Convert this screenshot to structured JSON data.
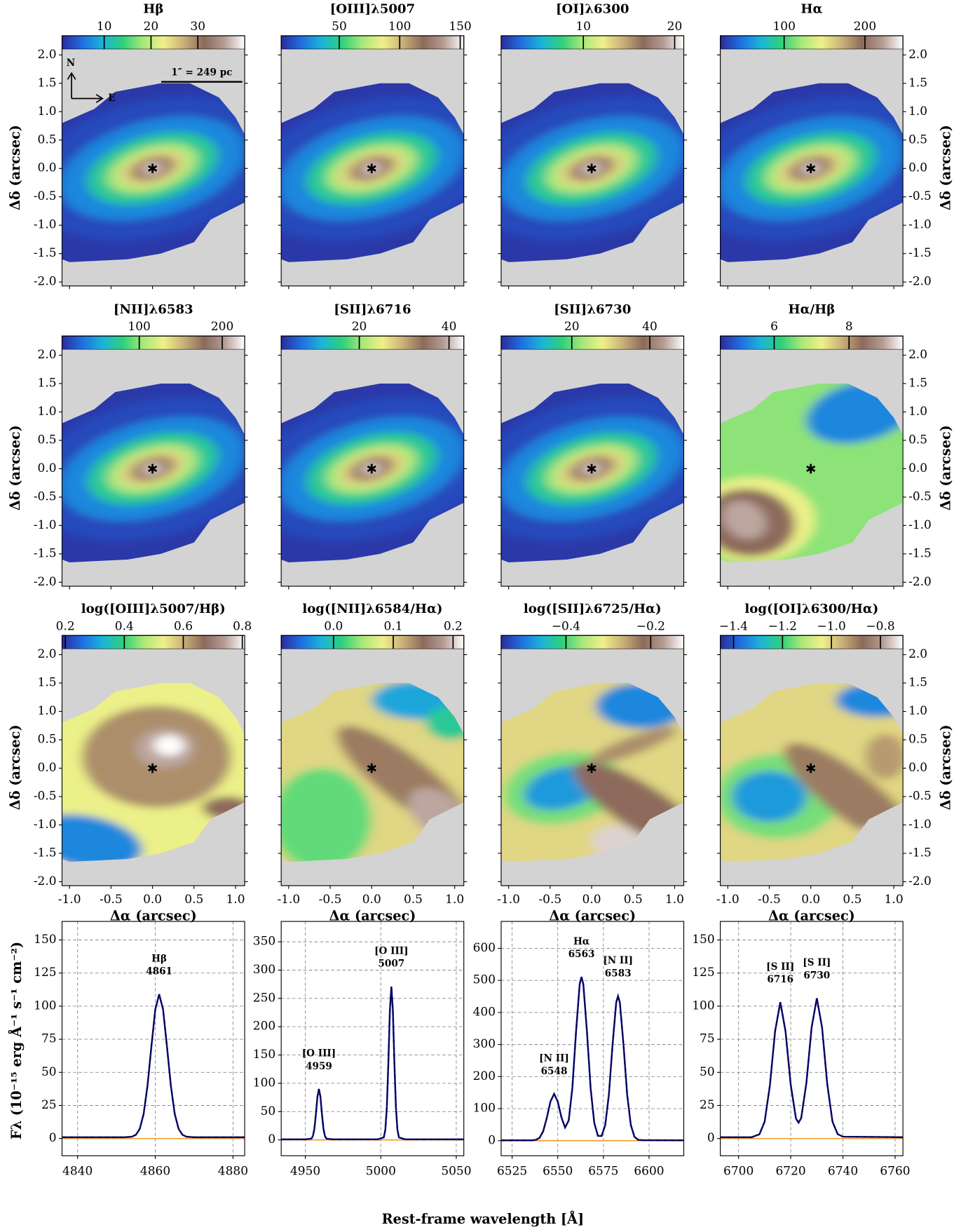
{
  "colormap": [
    "#2b2b9c",
    "#1f6fe0",
    "#1cb4d8",
    "#2fd07a",
    "#a8e878",
    "#f0f08a",
    "#c9b078",
    "#8c6a5a",
    "#b59c94",
    "#ffffff"
  ],
  "map_axes": {
    "xlim": [
      -1.09,
      1.11
    ],
    "ylim": [
      -2.07,
      2.1
    ],
    "xticks": [
      {
        "value": -1,
        "label": "-1.0"
      },
      -0.5,
      {
        "value": 0,
        "label": "0.0"
      },
      0.5,
      {
        "value": 1,
        "label": "1.0"
      }
    ],
    "yticks": [
      {
        "value": -2,
        "label": "-2.0"
      },
      -1.5,
      {
        "value": -1,
        "label": "-1.0"
      },
      -0.5,
      {
        "value": 0,
        "label": "0.0"
      },
      0.5,
      {
        "value": 1,
        "label": "1.0"
      },
      1.5,
      {
        "value": 2,
        "label": "2.0"
      }
    ],
    "xlabel": "Δα (arcsec)",
    "ylabel": "Δδ (arcsec)"
  },
  "annotations": {
    "compass_n": "N",
    "compass_e": "E",
    "scale_bar": "1″ = 249 pc"
  },
  "maps": [
    {
      "title": "Hβ",
      "clim": [
        1,
        40
      ],
      "cticks": [
        10,
        20,
        30
      ]
    },
    {
      "title": "[OIII]λ5007",
      "clim": [
        2,
        153
      ],
      "cticks": [
        50,
        100,
        150
      ]
    },
    {
      "title": "[OI]λ6300",
      "clim": [
        1,
        21
      ],
      "cticks": [
        10,
        20
      ]
    },
    {
      "title": "Hα",
      "clim": [
        21,
        247
      ],
      "cticks": [
        100,
        200
      ]
    },
    {
      "title": "[NII]λ6583",
      "clim": [
        7,
        227
      ],
      "cticks": [
        100,
        200
      ]
    },
    {
      "title": "[SII]λ6716",
      "clim": [
        2.6,
        43.3
      ],
      "cticks": [
        20,
        40
      ]
    },
    {
      "title": "[SII]λ6730",
      "clim": [
        1.9,
        48.7
      ],
      "cticks": [
        20,
        40
      ]
    },
    {
      "title": "Hα/Hβ",
      "clim": [
        4.56,
        9.44
      ],
      "cticks": [
        6,
        8
      ]
    },
    {
      "title": "log([OIII]λ5007/Hβ)",
      "clim": [
        0.189,
        0.808
      ],
      "cticks": [
        0.2,
        0.4,
        0.6,
        0.8
      ]
    },
    {
      "title": "log([NII]λ6584/Hα)",
      "clim": [
        -0.0875,
        0.218
      ],
      "cticks": [
        {
          "value": 0,
          "label": "0.0"
        },
        0.1,
        0.2
      ]
    },
    {
      "title": "log([SII]λ6725/Hα)",
      "clim": [
        -0.553,
        -0.122
      ],
      "cticks": [
        {
          "value": -0.4,
          "label": "−0.4"
        },
        {
          "value": -0.2,
          "label": "−0.2"
        }
      ]
    },
    {
      "title": "log([OI]λ6300/Hα)",
      "clim": [
        -1.454,
        -0.708
      ],
      "cticks": [
        {
          "value": -1.4,
          "label": "−1.4"
        },
        {
          "value": -1.2,
          "label": "−1.2"
        },
        {
          "value": -1.0,
          "label": "−1.0"
        },
        {
          "value": -0.8,
          "label": "−0.8"
        }
      ]
    }
  ],
  "spectra_labels": {
    "ylabel": "Fλ (10⁻¹⁵ erg Å⁻¹ s⁻¹ cm⁻²)",
    "xlabel": "Rest-frame wavelength [Å]"
  },
  "chart_data": [
    {
      "type": "line",
      "grid": true,
      "xlim": [
        4836,
        4883
      ],
      "ylim": [
        -13,
        164
      ],
      "xticks": [
        4840,
        4860,
        4880
      ],
      "yticks": [
        0,
        25,
        50,
        75,
        100,
        125,
        150
      ],
      "x": [
        4836,
        4845,
        4852,
        4854,
        4855,
        4856,
        4857,
        4858,
        4859,
        4860,
        4861,
        4862,
        4863,
        4864,
        4865,
        4866,
        4867,
        4868,
        4870,
        4876,
        4883
      ],
      "series": [
        {
          "color": "#0a0a8c",
          "values": [
            1,
            1,
            1,
            1.4,
            2.8,
            7.3,
            18.6,
            40,
            69.6,
            97.5,
            109,
            97.5,
            69.6,
            40,
            18.6,
            7.3,
            2.8,
            1.4,
            1,
            1,
            1
          ]
        },
        {
          "color": "#f0a030",
          "values": [
            0,
            0,
            0,
            0,
            0,
            0,
            0,
            0,
            0,
            0,
            0,
            0,
            0,
            0,
            0,
            0,
            0,
            0,
            0,
            0,
            0
          ]
        }
      ],
      "lines": [
        {
          "name": "Hβ",
          "wavelength": 4861
        }
      ]
    },
    {
      "type": "line",
      "grid": true,
      "xlim": [
        4934,
        5055
      ],
      "ylim": [
        -28,
        386
      ],
      "xticks": [
        4950,
        5000,
        5050
      ],
      "yticks": [
        0,
        50,
        100,
        150,
        200,
        250,
        300,
        350
      ],
      "x": [
        4934,
        4950,
        4954,
        4955,
        4956,
        4957,
        4958,
        4959,
        4960,
        4961,
        4962,
        4963,
        4964,
        4968,
        4998,
        5002,
        5003,
        5004,
        5005,
        5006,
        5007,
        5008,
        5009,
        5010,
        5011,
        5012,
        5016,
        5055
      ],
      "series": [
        {
          "color": "#0a0a8c",
          "values": [
            1,
            1,
            2.2,
            6.6,
            19.8,
            45.5,
            76,
            90,
            76,
            45.5,
            19.8,
            6.6,
            2.2,
            1,
            1,
            4.5,
            18,
            58,
            136,
            228,
            271,
            228,
            136,
            58,
            18,
            4.5,
            1,
            1
          ]
        },
        {
          "color": "#f0a030",
          "values": [
            0,
            0,
            0,
            0,
            0,
            0,
            0,
            0,
            0,
            0,
            0,
            0,
            0,
            0,
            0,
            0,
            0,
            0,
            0,
            0,
            0,
            0,
            0,
            0,
            0,
            0,
            0,
            0
          ]
        }
      ],
      "lines": [
        {
          "name": "[O III]",
          "wavelength": 4959
        },
        {
          "name": "[O III]",
          "wavelength": 5007
        }
      ]
    },
    {
      "type": "line",
      "grid": true,
      "xlim": [
        6519,
        6619
      ],
      "ylim": [
        -47,
        684
      ],
      "xticks": [
        6525,
        6550,
        6575,
        6600
      ],
      "yticks": [
        0,
        100,
        200,
        300,
        400,
        500,
        600
      ],
      "x": [
        6519,
        6536,
        6538,
        6540,
        6542,
        6544,
        6546,
        6548,
        6550,
        6552,
        6554,
        6556,
        6558,
        6560,
        6562,
        6563,
        6564,
        6566,
        6568,
        6570,
        6572,
        6574,
        6576,
        6578,
        6580,
        6582,
        6583,
        6584,
        6586,
        6588,
        6590,
        6592,
        6594,
        6596,
        6619
      ],
      "series": [
        {
          "color": "#0a0a8c",
          "values": [
            1,
            1.2,
            2.5,
            8.7,
            29,
            71,
            122,
            146,
            122,
            73,
            41,
            63,
            165,
            339,
            488,
            511,
            488,
            339,
            163,
            55,
            15,
            14.5,
            49,
            144,
            299,
            431,
            451,
            431,
            299,
            144,
            49,
            12,
            2.8,
            1.6,
            1
          ]
        },
        {
          "color": "#f0a030",
          "values": [
            0,
            0,
            0,
            0,
            0,
            0,
            0,
            0,
            0,
            0,
            0,
            0,
            0,
            0,
            0,
            0,
            0,
            0,
            0,
            0,
            0,
            0,
            0,
            0,
            0,
            0,
            0,
            0,
            0,
            0,
            0,
            0,
            0,
            0,
            0
          ]
        }
      ],
      "lines": [
        {
          "name": "[N II]",
          "wavelength": 6548
        },
        {
          "name": "Hα",
          "wavelength": 6563
        },
        {
          "name": "[N II]",
          "wavelength": 6583
        }
      ]
    },
    {
      "type": "line",
      "grid": true,
      "xlim": [
        6693,
        6763
      ],
      "ylim": [
        -13,
        164
      ],
      "xticks": [
        6700,
        6720,
        6740,
        6760
      ],
      "yticks": [
        0,
        25,
        50,
        75,
        100,
        125,
        150
      ],
      "x": [
        6693,
        6705,
        6708,
        6710,
        6712,
        6714,
        6716,
        6718,
        6720,
        6722,
        6723,
        6724,
        6726,
        6728,
        6730,
        6732,
        6734,
        6736,
        6738,
        6740,
        6763
      ],
      "series": [
        {
          "color": "#0a0a8c",
          "values": [
            1,
            1,
            3.2,
            12.8,
            40,
            81,
            103,
            81,
            40.5,
            15.1,
            12,
            15.4,
            42,
            84,
            106,
            84,
            41,
            12.7,
            3.3,
            1.4,
            1
          ]
        },
        {
          "color": "#f0a030",
          "values": [
            0,
            0,
            0,
            0,
            0,
            0,
            0,
            0,
            0,
            0,
            0,
            0,
            0,
            0,
            0,
            0,
            0,
            0,
            0,
            0,
            0
          ]
        }
      ],
      "lines": [
        {
          "name": "[S II]",
          "wavelength": 6716
        },
        {
          "name": "[S II]",
          "wavelength": 6730
        }
      ]
    }
  ]
}
